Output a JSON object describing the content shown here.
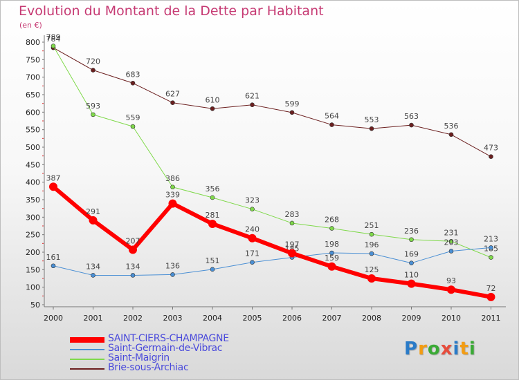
{
  "title": "Evolution du Montant de la Dette par Habitant",
  "unit": "(en €)",
  "logo": {
    "text": "Proxiti",
    "colors": [
      "#2a7bc8",
      "#f39c12",
      "#3aaa35",
      "#e74c3c",
      "#2a7bc8",
      "#f39c12",
      "#3aaa35"
    ]
  },
  "chart_data": {
    "type": "line",
    "x": [
      "2000",
      "2001",
      "2002",
      "2003",
      "2004",
      "2005",
      "2006",
      "2007",
      "2008",
      "2009",
      "2010",
      "2011"
    ],
    "ylim": [
      50,
      800
    ],
    "yticks": [
      "50",
      "100",
      "150",
      "200",
      "250",
      "300",
      "350",
      "400",
      "450",
      "500",
      "550",
      "600",
      "650",
      "700",
      "750",
      "800"
    ],
    "grid": false,
    "legend": "bottom-left",
    "series": [
      {
        "name": "Brie-sous-Archiac",
        "color": "#6b1f1f",
        "width": 1,
        "values": [
          784,
          720,
          683,
          627,
          610,
          621,
          599,
          564,
          553,
          563,
          536,
          473
        ],
        "labels": [
          "784",
          "720",
          "683",
          "627",
          "610",
          "621",
          "599",
          "564",
          "553",
          "563",
          "536",
          "473"
        ]
      },
      {
        "name": "Saint-Maigrin",
        "color": "#7fd94a",
        "width": 1,
        "values": [
          789,
          593,
          559,
          386,
          356,
          323,
          283,
          268,
          251,
          236,
          231,
          185
        ],
        "labels": [
          "789",
          "593",
          "559",
          "386",
          "356",
          "323",
          "283",
          "268",
          "251",
          "236",
          "231",
          "185"
        ]
      },
      {
        "name": "Saint-Germain-de-Vibrac",
        "color": "#4a8fd4",
        "width": 1,
        "values": [
          161,
          134,
          134,
          136,
          151,
          171,
          185,
          198,
          196,
          169,
          203,
          213
        ],
        "labels": [
          "161",
          "134",
          "134",
          "136",
          "151",
          "171",
          "185",
          "198",
          "196",
          "169",
          "203",
          "213"
        ]
      },
      {
        "name": "SAINT-CIERS-CHAMPAGNE",
        "color": "#ff0000",
        "width": 6,
        "values": [
          387,
          291,
          207,
          339,
          281,
          240,
          197,
          159,
          125,
          110,
          93,
          72
        ],
        "labels": [
          "387",
          "291",
          "207",
          "339",
          "281",
          "240",
          "197",
          "159",
          "125",
          "110",
          "93",
          "72"
        ]
      }
    ]
  },
  "legend_order": [
    "SAINT-CIERS-CHAMPAGNE",
    "Saint-Germain-de-Vibrac",
    "Saint-Maigrin",
    "Brie-sous-Archiac"
  ]
}
